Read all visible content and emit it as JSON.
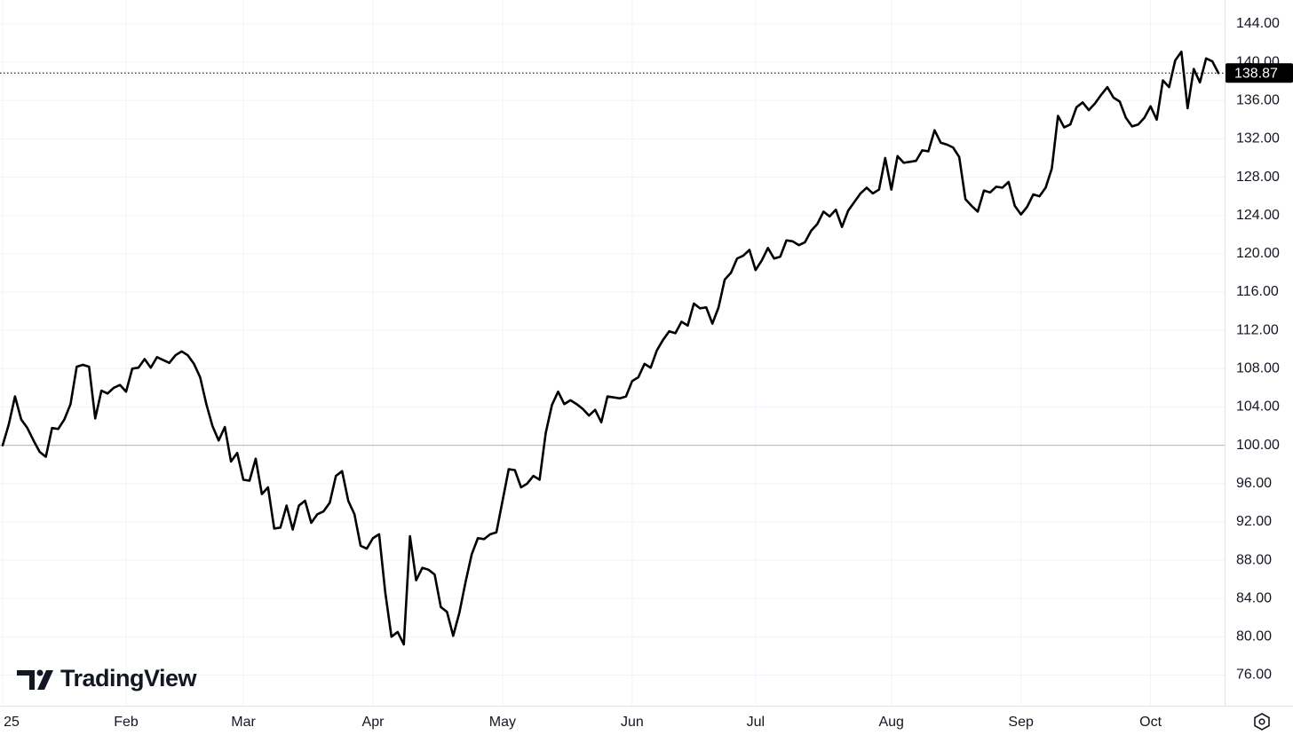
{
  "chart_data": {
    "type": "line",
    "color": "#000000",
    "values": [
      100.0,
      102.2,
      105.1,
      102.7,
      101.8,
      100.5,
      99.3,
      98.8,
      101.8,
      101.7,
      102.7,
      104.3,
      108.2,
      108.4,
      108.2,
      102.8,
      105.7,
      105.4,
      106.0,
      106.3,
      105.6,
      108.0,
      108.1,
      109.0,
      108.1,
      109.2,
      108.9,
      108.6,
      109.4,
      109.8,
      109.4,
      108.5,
      107.1,
      104.3,
      102.0,
      100.5,
      101.9,
      98.3,
      99.2,
      96.4,
      96.3,
      98.6,
      94.9,
      95.6,
      91.3,
      91.4,
      93.7,
      91.2,
      93.7,
      94.2,
      91.9,
      92.8,
      93.1,
      94.0,
      96.8,
      97.3,
      94.2,
      92.8,
      89.5,
      89.2,
      90.3,
      90.7,
      84.6,
      80.0,
      80.5,
      79.2,
      90.5,
      85.9,
      87.2,
      87.0,
      86.5,
      83.1,
      82.6,
      80.1,
      82.5,
      85.7,
      88.6,
      90.3,
      90.2,
      90.7,
      90.9,
      94.2,
      97.5,
      97.4,
      95.6,
      96.0,
      96.8,
      96.4,
      101.3,
      104.2,
      105.6,
      104.3,
      104.7,
      104.3,
      103.8,
      103.1,
      103.7,
      102.4,
      105.1,
      105.0,
      104.9,
      105.1,
      106.7,
      107.1,
      108.5,
      108.1,
      109.9,
      111.0,
      111.9,
      111.7,
      112.9,
      112.5,
      114.8,
      114.3,
      114.4,
      112.7,
      114.4,
      117.3,
      118.0,
      119.5,
      119.8,
      120.4,
      118.3,
      119.3,
      120.6,
      119.5,
      119.7,
      121.4,
      121.3,
      120.9,
      121.2,
      122.4,
      123.1,
      124.4,
      123.9,
      124.6,
      122.8,
      124.5,
      125.4,
      126.3,
      126.9,
      126.3,
      126.7,
      130.0,
      126.7,
      130.2,
      129.5,
      129.6,
      129.7,
      130.8,
      130.7,
      132.9,
      131.6,
      131.4,
      131.1,
      130.1,
      125.7,
      125.0,
      124.4,
      126.6,
      126.4,
      127.0,
      126.9,
      127.5,
      125.0,
      124.1,
      124.9,
      126.2,
      126.0,
      126.9,
      128.9,
      134.4,
      133.2,
      133.5,
      135.3,
      135.8,
      135.0,
      135.7,
      136.6,
      137.4,
      136.3,
      135.9,
      134.2,
      133.3,
      133.5,
      134.2,
      135.4,
      134.0,
      138.1,
      137.4,
      140.2,
      141.1,
      135.2,
      139.3,
      137.9,
      140.4,
      140.1,
      138.87
    ],
    "xlim": [
      0,
      198
    ],
    "xticks": [
      {
        "value": 0,
        "label": "25"
      },
      {
        "value": 20,
        "label": "Feb"
      },
      {
        "value": 39,
        "label": "Mar"
      },
      {
        "value": 60,
        "label": "Apr"
      },
      {
        "value": 81,
        "label": "May"
      },
      {
        "value": 102,
        "label": "Jun"
      },
      {
        "value": 122,
        "label": "Jul"
      },
      {
        "value": 144,
        "label": "Aug"
      },
      {
        "value": 165,
        "label": "Sep"
      },
      {
        "value": 186,
        "label": "Oct"
      }
    ],
    "ylim": [
      72.8,
      146.5
    ],
    "yticks": [
      {
        "value": 76,
        "label": "76.00"
      },
      {
        "value": 80,
        "label": "80.00"
      },
      {
        "value": 84,
        "label": "84.00"
      },
      {
        "value": 88,
        "label": "88.00"
      },
      {
        "value": 92,
        "label": "92.00"
      },
      {
        "value": 96,
        "label": "96.00"
      },
      {
        "value": 100,
        "label": "100.00"
      },
      {
        "value": 104,
        "label": "104.00"
      },
      {
        "value": 108,
        "label": "108.00"
      },
      {
        "value": 112,
        "label": "112.00"
      },
      {
        "value": 116,
        "label": "116.00"
      },
      {
        "value": 120,
        "label": "120.00"
      },
      {
        "value": 124,
        "label": "124.00"
      },
      {
        "value": 128,
        "label": "128.00"
      },
      {
        "value": 132,
        "label": "132.00"
      },
      {
        "value": 136,
        "label": "136.00"
      },
      {
        "value": 140,
        "label": "140.00"
      },
      {
        "value": 144,
        "label": "144.00"
      }
    ],
    "baseline": 100,
    "grid": true,
    "watermark": "TradingView"
  }
}
